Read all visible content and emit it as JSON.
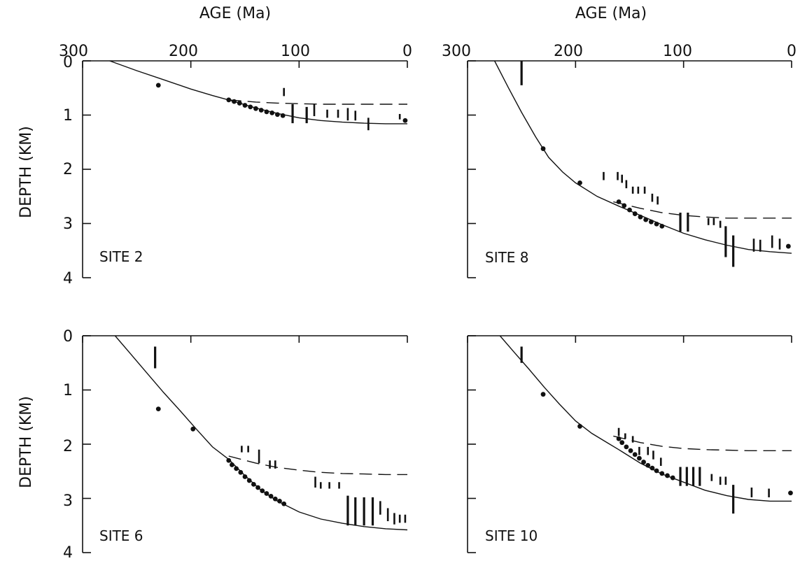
{
  "chart_data": {
    "type": "scatter",
    "x_axis_title": "AGE (Ma)",
    "y_axis_title": "DEPTH (KM)",
    "xlim": [
      300,
      0
    ],
    "ylim": [
      0,
      4
    ],
    "x_ticks": [
      "300",
      "200",
      "100",
      "0"
    ],
    "y_ticks": [
      "0",
      "1",
      "2",
      "3",
      "4"
    ],
    "panels": [
      {
        "id": "site2",
        "label": "SITE 2",
        "solid_curve": [
          [
            275,
            0
          ],
          [
            250,
            0.18
          ],
          [
            225,
            0.35
          ],
          [
            200,
            0.52
          ],
          [
            180,
            0.64
          ],
          [
            160,
            0.75
          ],
          [
            140,
            0.87
          ],
          [
            120,
            0.97
          ],
          [
            100,
            1.05
          ],
          [
            80,
            1.1
          ],
          [
            60,
            1.13
          ],
          [
            40,
            1.15
          ],
          [
            20,
            1.16
          ],
          [
            0,
            1.16
          ]
        ],
        "dashed_curve": [
          [
            165,
            0.72
          ],
          [
            140,
            0.76
          ],
          [
            120,
            0.78
          ],
          [
            100,
            0.79
          ],
          [
            80,
            0.8
          ],
          [
            60,
            0.8
          ],
          [
            40,
            0.8
          ],
          [
            20,
            0.8
          ],
          [
            0,
            0.8
          ]
        ],
        "points": [
          [
            230,
            0.45
          ],
          [
            165,
            0.72
          ],
          [
            160,
            0.75
          ],
          [
            155,
            0.78
          ],
          [
            150,
            0.82
          ],
          [
            145,
            0.85
          ],
          [
            140,
            0.88
          ],
          [
            135,
            0.91
          ],
          [
            130,
            0.94
          ],
          [
            125,
            0.96
          ],
          [
            120,
            0.99
          ],
          [
            115,
            1.01
          ],
          [
            2,
            1.1
          ]
        ],
        "ranges": [
          [
            114,
            0.5,
            0.65
          ],
          [
            106,
            0.8,
            1.15
          ],
          [
            93,
            0.85,
            1.15
          ],
          [
            86,
            0.8,
            1.02
          ],
          [
            74,
            0.9,
            1.05
          ],
          [
            64,
            0.9,
            1.05
          ],
          [
            55,
            0.87,
            1.1
          ],
          [
            48,
            0.92,
            1.1
          ],
          [
            36,
            1.05,
            1.28
          ],
          [
            7,
            0.98,
            1.08
          ]
        ]
      },
      {
        "id": "site8",
        "label": "SITE 8",
        "solid_curve": [
          [
            275,
            0
          ],
          [
            262,
            0.5
          ],
          [
            250,
            0.95
          ],
          [
            237,
            1.4
          ],
          [
            225,
            1.78
          ],
          [
            212,
            2.05
          ],
          [
            200,
            2.25
          ],
          [
            180,
            2.5
          ],
          [
            160,
            2.68
          ],
          [
            140,
            2.85
          ],
          [
            120,
            3.02
          ],
          [
            100,
            3.18
          ],
          [
            80,
            3.3
          ],
          [
            60,
            3.4
          ],
          [
            40,
            3.48
          ],
          [
            20,
            3.52
          ],
          [
            0,
            3.55
          ]
        ],
        "dashed_curve": [
          [
            165,
            2.6
          ],
          [
            140,
            2.72
          ],
          [
            120,
            2.8
          ],
          [
            100,
            2.85
          ],
          [
            80,
            2.88
          ],
          [
            60,
            2.9
          ],
          [
            40,
            2.9
          ],
          [
            20,
            2.9
          ],
          [
            0,
            2.9
          ]
        ],
        "points": [
          [
            230,
            1.62
          ],
          [
            196,
            2.25
          ],
          [
            160,
            2.6
          ],
          [
            155,
            2.67
          ],
          [
            150,
            2.75
          ],
          [
            145,
            2.82
          ],
          [
            140,
            2.88
          ],
          [
            135,
            2.93
          ],
          [
            130,
            2.97
          ],
          [
            125,
            3.01
          ],
          [
            120,
            3.05
          ],
          [
            3,
            3.42
          ]
        ],
        "ranges": [
          [
            250,
            0,
            0.45
          ],
          [
            174,
            2.05,
            2.2
          ],
          [
            161,
            2.05,
            2.2
          ],
          [
            157,
            2.1,
            2.25
          ],
          [
            153,
            2.2,
            2.35
          ],
          [
            147,
            2.32,
            2.45
          ],
          [
            142,
            2.32,
            2.45
          ],
          [
            136,
            2.32,
            2.45
          ],
          [
            129,
            2.45,
            2.6
          ],
          [
            124,
            2.5,
            2.65
          ],
          [
            103,
            2.8,
            3.15
          ],
          [
            96,
            2.8,
            3.15
          ],
          [
            77,
            2.9,
            3.03
          ],
          [
            72,
            2.9,
            3.03
          ],
          [
            66,
            2.95,
            3.08
          ],
          [
            61,
            3.05,
            3.62
          ],
          [
            54,
            3.22,
            3.8
          ],
          [
            35,
            3.28,
            3.52
          ],
          [
            29,
            3.3,
            3.52
          ],
          [
            18,
            3.22,
            3.45
          ],
          [
            11,
            3.28,
            3.48
          ]
        ]
      },
      {
        "id": "site6",
        "label": "SITE 6",
        "solid_curve": [
          [
            270,
            0
          ],
          [
            255,
            0.35
          ],
          [
            240,
            0.7
          ],
          [
            225,
            1.05
          ],
          [
            210,
            1.38
          ],
          [
            195,
            1.72
          ],
          [
            180,
            2.05
          ],
          [
            165,
            2.28
          ],
          [
            150,
            2.58
          ],
          [
            135,
            2.85
          ],
          [
            120,
            3.05
          ],
          [
            100,
            3.25
          ],
          [
            80,
            3.38
          ],
          [
            60,
            3.46
          ],
          [
            40,
            3.52
          ],
          [
            20,
            3.56
          ],
          [
            0,
            3.58
          ]
        ],
        "dashed_curve": [
          [
            165,
            2.22
          ],
          [
            140,
            2.35
          ],
          [
            120,
            2.43
          ],
          [
            100,
            2.48
          ],
          [
            80,
            2.52
          ],
          [
            60,
            2.54
          ],
          [
            40,
            2.55
          ],
          [
            20,
            2.56
          ],
          [
            0,
            2.56
          ]
        ],
        "points": [
          [
            230,
            1.35
          ],
          [
            198,
            1.72
          ],
          [
            165,
            2.3
          ],
          [
            162,
            2.38
          ],
          [
            158,
            2.45
          ],
          [
            154,
            2.52
          ],
          [
            150,
            2.6
          ],
          [
            146,
            2.67
          ],
          [
            142,
            2.74
          ],
          [
            138,
            2.8
          ],
          [
            134,
            2.86
          ],
          [
            130,
            2.91
          ],
          [
            126,
            2.96
          ],
          [
            122,
            3.01
          ],
          [
            118,
            3.05
          ],
          [
            114,
            3.1
          ]
        ],
        "ranges": [
          [
            233,
            0.2,
            0.6
          ],
          [
            153,
            2.03,
            2.15
          ],
          [
            147,
            2.03,
            2.15
          ],
          [
            137,
            2.1,
            2.35
          ],
          [
            127,
            2.3,
            2.45
          ],
          [
            122,
            2.3,
            2.45
          ],
          [
            85,
            2.6,
            2.8
          ],
          [
            80,
            2.7,
            2.82
          ],
          [
            72,
            2.7,
            2.82
          ],
          [
            63,
            2.7,
            2.82
          ],
          [
            55,
            2.95,
            3.5
          ],
          [
            48,
            2.98,
            3.5
          ],
          [
            40,
            2.98,
            3.5
          ],
          [
            32,
            2.98,
            3.5
          ],
          [
            25,
            3.05,
            3.3
          ],
          [
            18,
            3.18,
            3.42
          ],
          [
            12,
            3.27,
            3.48
          ],
          [
            7,
            3.3,
            3.45
          ],
          [
            2,
            3.3,
            3.45
          ]
        ]
      },
      {
        "id": "site10",
        "label": "SITE 10",
        "solid_curve": [
          [
            270,
            0
          ],
          [
            257,
            0.3
          ],
          [
            243,
            0.62
          ],
          [
            229,
            0.95
          ],
          [
            215,
            1.26
          ],
          [
            200,
            1.57
          ],
          [
            185,
            1.8
          ],
          [
            170,
            1.98
          ],
          [
            160,
            2.1
          ],
          [
            140,
            2.35
          ],
          [
            120,
            2.55
          ],
          [
            100,
            2.7
          ],
          [
            80,
            2.85
          ],
          [
            60,
            2.95
          ],
          [
            40,
            3.02
          ],
          [
            20,
            3.05
          ],
          [
            0,
            3.05
          ]
        ],
        "dashed_curve": [
          [
            165,
            1.85
          ],
          [
            140,
            1.97
          ],
          [
            120,
            2.04
          ],
          [
            100,
            2.08
          ],
          [
            80,
            2.1
          ],
          [
            60,
            2.11
          ],
          [
            40,
            2.12
          ],
          [
            20,
            2.12
          ],
          [
            0,
            2.12
          ]
        ],
        "points": [
          [
            230,
            1.08
          ],
          [
            196,
            1.67
          ],
          [
            160,
            1.9
          ],
          [
            157,
            1.97
          ],
          [
            153,
            2.05
          ],
          [
            149,
            2.12
          ],
          [
            145,
            2.19
          ],
          [
            141,
            2.26
          ],
          [
            137,
            2.33
          ],
          [
            133,
            2.39
          ],
          [
            129,
            2.44
          ],
          [
            125,
            2.49
          ],
          [
            120,
            2.54
          ],
          [
            115,
            2.58
          ],
          [
            110,
            2.62
          ],
          [
            1,
            2.9
          ]
        ],
        "ranges": [
          [
            250,
            0.2,
            0.5
          ],
          [
            160,
            1.7,
            1.85
          ],
          [
            154,
            1.8,
            1.9
          ],
          [
            147,
            1.85,
            1.97
          ],
          [
            141,
            2.05,
            2.2
          ],
          [
            133,
            2.05,
            2.2
          ],
          [
            128,
            2.12,
            2.28
          ],
          [
            121,
            2.25,
            2.4
          ],
          [
            103,
            2.42,
            2.77
          ],
          [
            97,
            2.42,
            2.77
          ],
          [
            91,
            2.42,
            2.77
          ],
          [
            85,
            2.42,
            2.77
          ],
          [
            74,
            2.55,
            2.68
          ],
          [
            66,
            2.6,
            2.75
          ],
          [
            61,
            2.6,
            2.75
          ],
          [
            54,
            2.75,
            3.28
          ],
          [
            37,
            2.8,
            2.98
          ],
          [
            21,
            2.82,
            2.98
          ]
        ]
      }
    ]
  }
}
